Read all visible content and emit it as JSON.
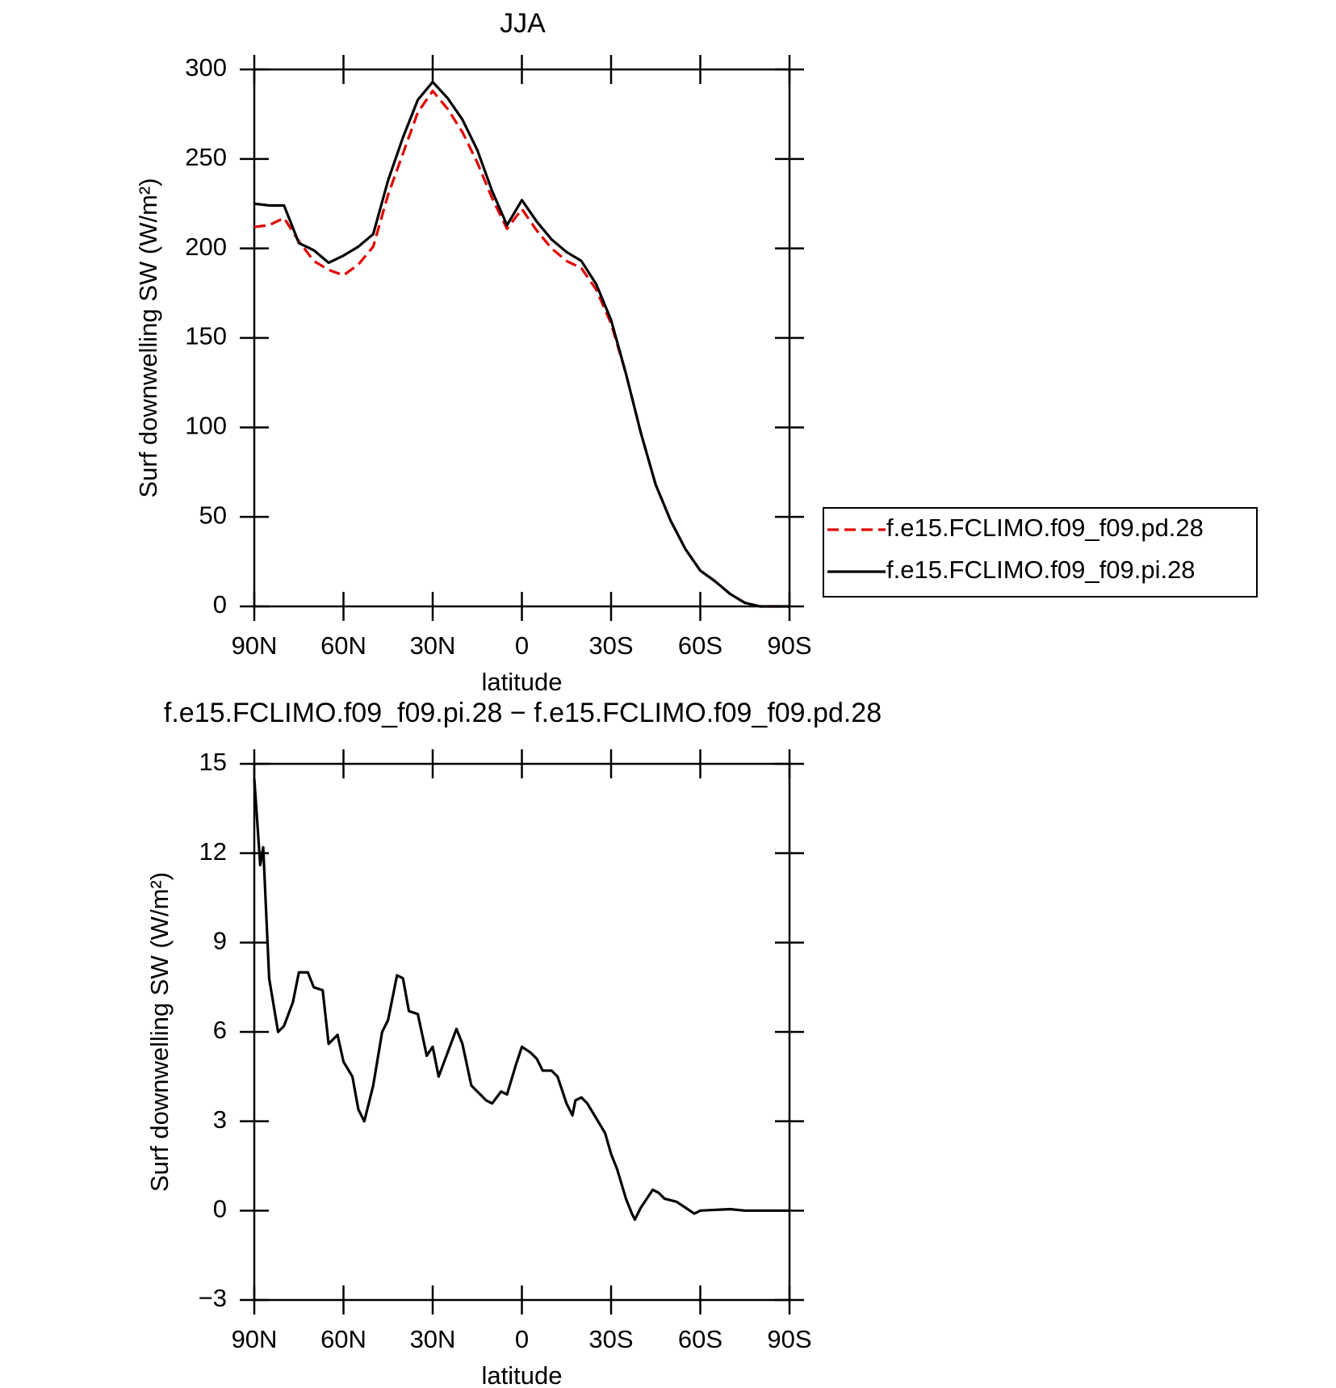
{
  "chart_data": [
    {
      "type": "line",
      "title": "JJA",
      "xlabel": "latitude",
      "ylabel": "Surf downwelling SW (W/m²)",
      "x": [
        90,
        85,
        80,
        75,
        70,
        65,
        60,
        55,
        50,
        45,
        40,
        35,
        30,
        25,
        20,
        15,
        10,
        5,
        0,
        -5,
        -10,
        -15,
        -20,
        -25,
        -30,
        -35,
        -40,
        -45,
        -50,
        -55,
        -60,
        -65,
        -70,
        -75,
        -80,
        -85,
        -90
      ],
      "series": [
        {
          "name": "f.e15.FCLIMO.f09_f09.pd.28",
          "color": "#e00000",
          "line_style": "dashed",
          "values": [
            212,
            213,
            217,
            204,
            193,
            188,
            185,
            191,
            201,
            230,
            253,
            276,
            288,
            278,
            265,
            248,
            228,
            211,
            222,
            210,
            200,
            193,
            189,
            177,
            158,
            130,
            97,
            68,
            48,
            32,
            20,
            14,
            7,
            2,
            0,
            0,
            0
          ]
        },
        {
          "name": "f.e15.FCLIMO.f09_f09.pi.28",
          "color": "#000000",
          "line_style": "solid",
          "values": [
            225,
            224,
            224,
            203,
            199,
            192,
            196,
            201,
            208,
            238,
            262,
            283,
            293,
            284,
            272,
            255,
            232,
            213,
            227,
            215,
            205,
            198,
            193,
            180,
            160,
            130,
            97,
            68,
            48,
            32,
            20,
            14,
            7,
            2,
            0,
            0,
            0
          ]
        }
      ],
      "xlim": [
        90,
        -90
      ],
      "xticks": [
        {
          "value": 90,
          "label": "90N"
        },
        {
          "value": 60,
          "label": "60N"
        },
        {
          "value": 30,
          "label": "30N"
        },
        0,
        {
          "value": -30,
          "label": "30S"
        },
        {
          "value": -60,
          "label": "60S"
        },
        {
          "value": -90,
          "label": "90S"
        }
      ],
      "ylim": [
        0,
        300
      ],
      "yticks": [
        0,
        50,
        100,
        150,
        200,
        250,
        300
      ],
      "legend": "right"
    },
    {
      "type": "line",
      "title": "f.e15.FCLIMO.f09_f09.pi.28 − f.e15.FCLIMO.f09_f09.pd.28",
      "xlabel": "latitude",
      "ylabel": "Surf downwelling SW (W/m²)",
      "x": [
        90,
        88,
        87,
        85,
        82,
        80,
        77,
        75,
        72,
        70,
        67,
        65,
        62,
        60,
        57,
        55,
        53,
        50,
        47,
        45,
        42,
        40,
        38,
        35,
        32,
        30,
        28,
        25,
        22,
        20,
        17,
        15,
        12,
        10,
        7,
        5,
        2,
        0,
        -3,
        -5,
        -7,
        -10,
        -12,
        -15,
        -17,
        -18,
        -20,
        -22,
        -25,
        -28,
        -30,
        -32,
        -35,
        -37,
        -38,
        -40,
        -42,
        -44,
        -46,
        -48,
        -52,
        -55,
        -58,
        -60,
        -70,
        -75,
        -90
      ],
      "series": [
        {
          "color": "#000000",
          "line_style": "solid",
          "values": [
            14.5,
            11.6,
            12.2,
            7.8,
            6.0,
            6.2,
            7.0,
            8.0,
            8.0,
            7.5,
            7.4,
            5.6,
            5.9,
            5.0,
            4.5,
            3.4,
            3.0,
            4.2,
            6.0,
            6.4,
            7.9,
            7.8,
            6.7,
            6.6,
            5.2,
            5.5,
            4.5,
            5.3,
            6.1,
            5.6,
            4.2,
            4.0,
            3.7,
            3.6,
            4.0,
            3.9,
            4.9,
            5.5,
            5.3,
            5.1,
            4.7,
            4.7,
            4.5,
            3.6,
            3.2,
            3.7,
            3.8,
            3.6,
            3.1,
            2.6,
            1.9,
            1.4,
            0.4,
            -0.1,
            -0.3,
            0.1,
            0.4,
            0.7,
            0.6,
            0.4,
            0.3,
            0.1,
            -0.1,
            0,
            0.05,
            0,
            0
          ]
        }
      ],
      "xlim": [
        90,
        -90
      ],
      "xticks": [
        {
          "value": 90,
          "label": "90N"
        },
        {
          "value": 60,
          "label": "60N"
        },
        {
          "value": 30,
          "label": "30N"
        },
        0,
        {
          "value": -30,
          "label": "30S"
        },
        {
          "value": -60,
          "label": "60S"
        },
        {
          "value": -90,
          "label": "90S"
        }
      ],
      "ylim": [
        -3,
        15
      ],
      "yticks": [
        {
          "value": -3,
          "label": "−3"
        },
        0,
        3,
        6,
        9,
        12,
        15
      ]
    }
  ]
}
